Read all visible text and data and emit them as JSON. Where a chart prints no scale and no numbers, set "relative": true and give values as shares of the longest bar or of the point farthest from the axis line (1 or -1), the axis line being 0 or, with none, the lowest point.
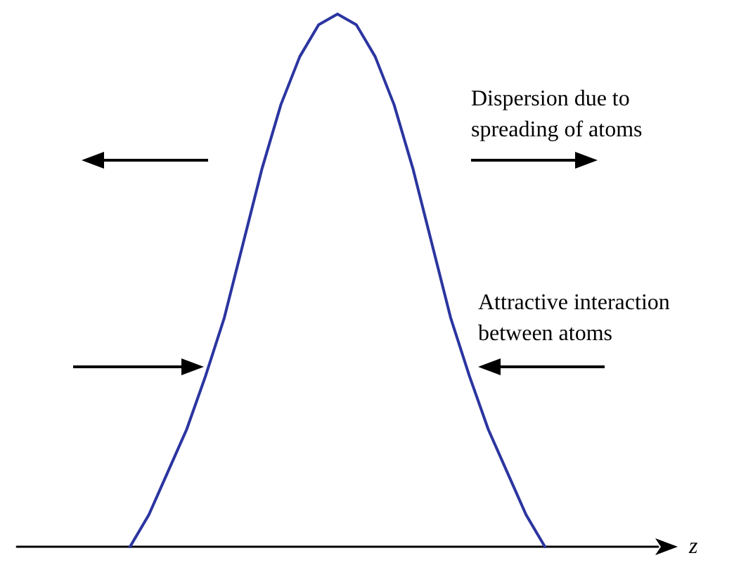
{
  "chart_data": {
    "type": "line",
    "relative": true,
    "xlabel": "z",
    "categories": [
      null,
      null,
      null,
      null,
      null,
      null,
      null,
      null,
      null,
      null,
      null,
      null,
      null,
      null,
      null,
      null,
      null,
      null,
      null,
      null,
      null,
      null,
      null,
      null,
      null,
      null,
      null,
      null,
      null,
      null,
      null,
      null,
      null,
      null,
      null
    ],
    "series": [
      {
        "color": "#2b35a0",
        "values": [
          null,
          null,
          null,
          null,
          null,
          null,
          0,
          0.06,
          0.14,
          0.22,
          0.32,
          0.43,
          0.57,
          0.71,
          0.83,
          0.92,
          0.98,
          1,
          0.98,
          0.92,
          0.83,
          0.71,
          0.57,
          0.43,
          0.32,
          0.22,
          0.14,
          0.06,
          0,
          null,
          null,
          null,
          null,
          null,
          null
        ]
      }
    ],
    "annotations": [
      "Dispersion due to\nspreading of atoms",
      "Attractive interaction\nbetween atoms"
    ],
    "grid": false,
    "marker": "none",
    "line_style": "solid"
  }
}
